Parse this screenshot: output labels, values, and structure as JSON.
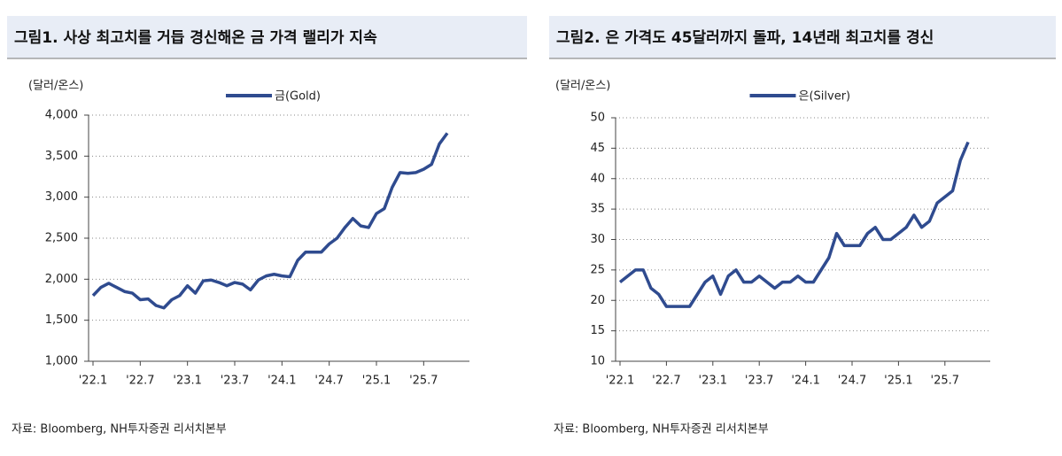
{
  "chart_data": [
    {
      "type": "line",
      "title": "그림1. 사상 최고치를 거듭 경신해온 금 가격 랠리가 지속",
      "y_label": "(달러/온스)",
      "source": "자료: Bloomberg, NH투자증권 리서치본부",
      "categories": [
        "'22.1",
        null,
        null,
        null,
        null,
        null,
        "'22.7",
        null,
        null,
        null,
        null,
        null,
        "'23.1",
        null,
        null,
        null,
        null,
        null,
        "'23.7",
        null,
        null,
        null,
        null,
        null,
        "'24.1",
        null,
        null,
        null,
        null,
        null,
        "'24.7",
        null,
        null,
        null,
        null,
        null,
        "'25.1",
        null,
        null,
        null,
        null,
        null,
        "'25.7",
        null,
        null,
        null
      ],
      "series": [
        {
          "name": "금(Gold)",
          "color": "#2f4b8f",
          "values": [
            1800,
            1900,
            1950,
            1900,
            1850,
            1830,
            1750,
            1760,
            1680,
            1650,
            1750,
            1800,
            1920,
            1830,
            1980,
            1990,
            1960,
            1920,
            1960,
            1940,
            1870,
            1990,
            2040,
            2060,
            2040,
            2030,
            2230,
            2330,
            2330,
            2330,
            2430,
            2500,
            2630,
            2740,
            2650,
            2630,
            2800,
            2860,
            3120,
            3300,
            3290,
            3300,
            3340,
            3400,
            3650,
            3780
          ]
        }
      ],
      "ylim": [
        1000,
        4000
      ],
      "yticks": [
        {
          "value": 1000,
          "label": "1,000"
        },
        {
          "value": 1500,
          "label": "1,500"
        },
        {
          "value": 2000,
          "label": "2,000"
        },
        {
          "value": 2500,
          "label": "2,500"
        },
        {
          "value": 3000,
          "label": "3,000"
        },
        {
          "value": 3500,
          "label": "3,500"
        },
        {
          "value": 4000,
          "label": "4,000"
        }
      ],
      "grid": true,
      "legend": "top"
    },
    {
      "type": "line",
      "title": "그림2. 은 가격도 45달러까지 돌파, 14년래 최고치를 경신",
      "y_label": "(달러/온스)",
      "source": "자료: Bloomberg, NH투자증권 리서치본부",
      "categories": [
        "'22.1",
        null,
        null,
        null,
        null,
        null,
        "'22.7",
        null,
        null,
        null,
        null,
        null,
        "'23.1",
        null,
        null,
        null,
        null,
        null,
        "'23.7",
        null,
        null,
        null,
        null,
        null,
        "'24.1",
        null,
        null,
        null,
        null,
        null,
        "'24.7",
        null,
        null,
        null,
        null,
        null,
        "'25.1",
        null,
        null,
        null,
        null,
        null,
        "'25.7",
        null,
        null,
        null
      ],
      "series": [
        {
          "name": "은(Silver)",
          "color": "#2f4b8f",
          "values": [
            23,
            24,
            25,
            25,
            22,
            21,
            19,
            19,
            19,
            19,
            21,
            23,
            24,
            21,
            24,
            25,
            23,
            23,
            24,
            23,
            22,
            23,
            23,
            24,
            23,
            23,
            25,
            27,
            31,
            29,
            29,
            29,
            31,
            32,
            30,
            30,
            31,
            32,
            34,
            32,
            33,
            36,
            37,
            38,
            43,
            46
          ]
        }
      ],
      "ylim": [
        10,
        50
      ],
      "yticks": [
        10,
        15,
        20,
        25,
        30,
        35,
        40,
        45,
        50
      ],
      "grid": true,
      "legend": "top"
    }
  ]
}
